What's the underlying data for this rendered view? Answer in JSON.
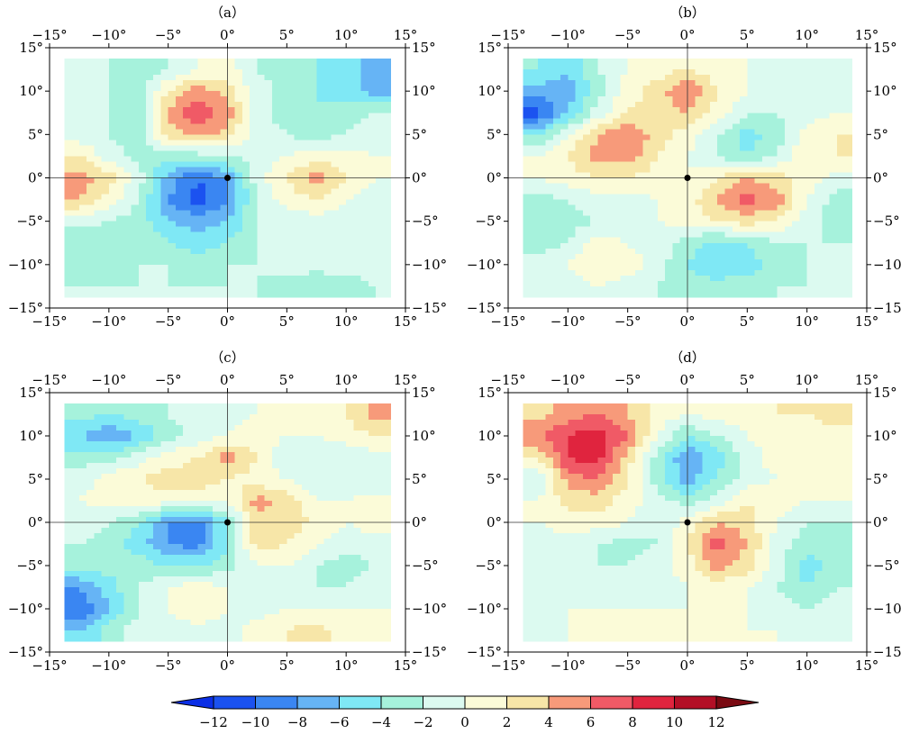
{
  "chart_data": {
    "type": "heatmap",
    "panels": [
      {
        "label": "（a）",
        "xlim": [
          -15,
          15
        ],
        "ylim": [
          -15,
          15
        ],
        "grid_x": [
          -12.5,
          -10,
          -7.5,
          -5,
          -2.5,
          0,
          2.5,
          5,
          7.5,
          10,
          12.5
        ],
        "grid_y": [
          12.5,
          10,
          7.5,
          5,
          2.5,
          0,
          -2.5,
          -5,
          -7.5,
          -10,
          -12.5
        ],
        "values": [
          [
            -1,
            -2,
            -3,
            -2,
            0,
            1,
            -2,
            -3,
            -4,
            -5,
            -7
          ],
          [
            -1,
            -2,
            -3,
            2,
            5,
            3,
            -1,
            -3,
            -4,
            -5,
            -7
          ],
          [
            -1,
            -2,
            -3,
            4,
            8,
            5,
            -1,
            -3,
            -4,
            -3,
            -2
          ],
          [
            -1,
            -2,
            -3,
            3,
            5,
            3,
            -1,
            -2,
            -3,
            -2,
            -1
          ],
          [
            2,
            -1,
            -3,
            -3,
            -3,
            -2,
            -1,
            0,
            1,
            1,
            0
          ],
          [
            5,
            3,
            -1,
            -7,
            -10,
            -8,
            -1,
            2,
            5,
            2,
            0
          ],
          [
            4,
            1,
            -2,
            -8,
            -11,
            -8,
            -2,
            1,
            2,
            0,
            -1
          ],
          [
            -1,
            -2,
            -3,
            -6,
            -7,
            -6,
            -2,
            -1,
            -1,
            -1,
            -1
          ],
          [
            -4,
            -3,
            -2,
            -4,
            -5,
            -4,
            -2,
            -1,
            -1,
            -1,
            -1
          ],
          [
            -3,
            -3,
            -2,
            -2,
            -3,
            -2,
            -2,
            -1,
            -1,
            -1,
            -1
          ],
          [
            -2,
            -2,
            -2,
            -2,
            -2,
            -2,
            -2,
            -3,
            -4,
            -3,
            -2
          ]
        ]
      },
      {
        "label": "（b）",
        "xlim": [
          -15,
          15
        ],
        "ylim": [
          -15,
          15
        ],
        "grid_x": [
          -12.5,
          -10,
          -7.5,
          -5,
          -2.5,
          0,
          2.5,
          5,
          7.5,
          10,
          12.5
        ],
        "grid_y": [
          12.5,
          10,
          7.5,
          5,
          2.5,
          0,
          -2.5,
          -5,
          -7.5,
          -10,
          -12.5
        ],
        "values": [
          [
            -4,
            -6,
            -2,
            0,
            1,
            2,
            1,
            0,
            -1,
            -2,
            -1
          ],
          [
            -7,
            -7,
            -3,
            1,
            3,
            6,
            2,
            0,
            -1,
            -2,
            -1
          ],
          [
            -11,
            -6,
            -1,
            2,
            3,
            4,
            1,
            -2,
            -2,
            -1,
            0
          ],
          [
            -4,
            0,
            4,
            6,
            3,
            1,
            -2,
            -5,
            -3,
            1,
            2
          ],
          [
            0,
            2,
            5,
            5,
            2,
            0,
            -2,
            -4,
            -2,
            2,
            2
          ],
          [
            0,
            1,
            2,
            2,
            1,
            0,
            2,
            4,
            3,
            1,
            -1
          ],
          [
            -3,
            -2,
            -1,
            -1,
            0,
            1,
            4,
            7,
            5,
            0,
            -3
          ],
          [
            -4,
            -3,
            -2,
            -1,
            0,
            1,
            2,
            3,
            2,
            -1,
            -3
          ],
          [
            -3,
            -2,
            1,
            0,
            -1,
            -3,
            -5,
            -4,
            -2,
            -2,
            -2
          ],
          [
            -1,
            0,
            2,
            1,
            -1,
            -4,
            -6,
            -5,
            -3,
            -2,
            -2
          ],
          [
            -1,
            -1,
            0,
            -1,
            -2,
            -3,
            -3,
            -3,
            -2,
            -2,
            -2
          ]
        ]
      },
      {
        "label": "（c）",
        "xlim": [
          -15,
          15
        ],
        "ylim": [
          -15,
          15
        ],
        "grid_x": [
          -12.5,
          -10,
          -7.5,
          -5,
          -2.5,
          0,
          2.5,
          5,
          7.5,
          10,
          12.5
        ],
        "grid_y": [
          12.5,
          10,
          7.5,
          5,
          2.5,
          0,
          -2.5,
          -5,
          -7.5,
          -10,
          -12.5
        ],
        "values": [
          [
            -3,
            -4,
            -3,
            -2,
            -1,
            -1,
            0,
            0,
            1,
            2,
            5
          ],
          [
            -6,
            -8,
            -6,
            -3,
            -1,
            0,
            1,
            0,
            0,
            1,
            2
          ],
          [
            -3,
            -3,
            -1,
            1,
            2,
            5,
            2,
            -2,
            -2,
            -2,
            -1
          ],
          [
            -1,
            1,
            2,
            3,
            3,
            2,
            1,
            0,
            -2,
            -2,
            -2
          ],
          [
            0,
            1,
            1,
            1,
            1,
            0,
            5,
            3,
            0,
            0,
            1
          ],
          [
            -1,
            -2,
            -4,
            -8,
            -9,
            -4,
            3,
            4,
            1,
            0,
            1
          ],
          [
            -2,
            -3,
            -5,
            -8,
            -9,
            -4,
            3,
            2,
            0,
            -1,
            -1
          ],
          [
            -3,
            -3,
            -3,
            -4,
            -4,
            -3,
            0,
            0,
            -2,
            -3,
            -2
          ],
          [
            -8,
            -5,
            -2,
            0,
            1,
            0,
            -1,
            -2,
            -2,
            -2,
            -1
          ],
          [
            -10,
            -6,
            -2,
            0,
            2,
            0,
            -1,
            0,
            0,
            0,
            0
          ],
          [
            -6,
            -3,
            -1,
            -1,
            -1,
            -1,
            1,
            2,
            3,
            1,
            0
          ]
        ]
      },
      {
        "label": "（d）",
        "xlim": [
          -15,
          15
        ],
        "ylim": [
          -15,
          15
        ],
        "grid_x": [
          -12.5,
          -10,
          -7.5,
          -5,
          -2.5,
          0,
          2.5,
          5,
          7.5,
          10,
          12.5
        ],
        "grid_y": [
          12.5,
          10,
          7.5,
          5,
          2.5,
          0,
          -2.5,
          -5,
          -7.5,
          -10,
          -12.5
        ],
        "values": [
          [
            3,
            5,
            6,
            4,
            1,
            0,
            1,
            1,
            2,
            2,
            3
          ],
          [
            6,
            8,
            9,
            6,
            0,
            -4,
            -2,
            0,
            1,
            1,
            1
          ],
          [
            2,
            8,
            9,
            3,
            -3,
            -8,
            -5,
            -1,
            1,
            1,
            1
          ],
          [
            -2,
            5,
            6,
            2,
            -3,
            -7,
            -4,
            -1,
            0,
            0,
            1
          ],
          [
            0,
            3,
            3,
            1,
            -1,
            -3,
            -1,
            2,
            1,
            0,
            0
          ],
          [
            0,
            1,
            1,
            0,
            -2,
            1,
            4,
            3,
            0,
            -2,
            -2
          ],
          [
            -1,
            -1,
            -2,
            -3,
            -2,
            2,
            7,
            4,
            -1,
            -3,
            -3
          ],
          [
            -1,
            -1,
            -2,
            -2,
            -1,
            1,
            5,
            3,
            -1,
            -5,
            -3
          ],
          [
            -1,
            -1,
            -1,
            -1,
            -1,
            0,
            1,
            0,
            -2,
            -4,
            -2
          ],
          [
            -1,
            0,
            0,
            0,
            0,
            0,
            0,
            0,
            -1,
            -2,
            -1
          ],
          [
            -1,
            0,
            1,
            1,
            1,
            0,
            0,
            0,
            0,
            -1,
            -1
          ]
        ]
      }
    ],
    "x_tick_labels": [
      "−15°",
      "−10°",
      "−5°",
      "0°",
      "5°",
      "10°",
      "15°"
    ],
    "y_tick_labels": [
      "15°",
      "10°",
      "5°",
      "0°",
      "−5°",
      "−10°",
      "−15°"
    ],
    "colorbar": {
      "levels": [
        -12,
        -10,
        -8,
        -6,
        -4,
        -2,
        0,
        2,
        4,
        6,
        8,
        10,
        12
      ],
      "tick_labels": [
        "−12",
        "−10",
        "−8",
        "−6",
        "−4",
        "−2",
        "0",
        "2",
        "4",
        "6",
        "8",
        "10",
        "12"
      ],
      "colors": [
        "#0b2fe6",
        "#1b52f0",
        "#3a86f2",
        "#66b4f5",
        "#7fe8f5",
        "#a6f2dc",
        "#dcfaf0",
        "#fbfbd8",
        "#f7e6a8",
        "#f79a7a",
        "#f05a66",
        "#e0243e",
        "#b30f26",
        "#7a0a12"
      ],
      "extend": "both"
    },
    "center_marker": [
      0,
      0
    ]
  }
}
